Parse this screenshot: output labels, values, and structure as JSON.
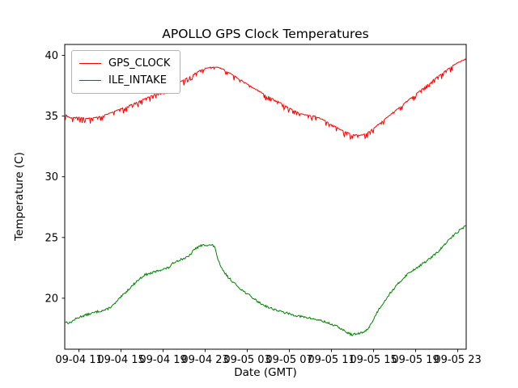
{
  "chart_data": {
    "type": "line",
    "title": "APOLLO GPS Clock Temperatures",
    "xlabel": "Date (GMT)",
    "ylabel": "Temperature (C)",
    "x_unit": "hours since 09-04 00:00 GMT",
    "xlim": [
      9.65,
      47.8
    ],
    "ylim": [
      15.8,
      40.9
    ],
    "xticks": [
      11,
      15,
      19,
      23,
      27,
      31,
      35,
      39,
      43,
      47
    ],
    "xticklabels": [
      "09-04 11",
      "09-04 15",
      "09-04 19",
      "09-04 23",
      "09-05 03",
      "09-05 07",
      "09-05 11",
      "09-05 15",
      "09-05 19",
      "09-05 23"
    ],
    "yticks": [
      20,
      25,
      30,
      35,
      40
    ],
    "grid": false,
    "legend_position": "upper left",
    "series": [
      {
        "name": "GPS_CLOCK",
        "color": "#ff0000",
        "noise": {
          "type": "spikes-down",
          "probability": 0.3,
          "amplitude": 0.45,
          "jitter": 0.07,
          "seed": 7
        },
        "points": [
          [
            9.7,
            35.1
          ],
          [
            10.2,
            34.85
          ],
          [
            11.0,
            34.9
          ],
          [
            11.6,
            34.8
          ],
          [
            12.4,
            34.85
          ],
          [
            13.2,
            35.0
          ],
          [
            14.0,
            35.25
          ],
          [
            15.0,
            35.6
          ],
          [
            16.0,
            35.95
          ],
          [
            17.0,
            36.35
          ],
          [
            18.0,
            36.7
          ],
          [
            19.0,
            37.1
          ],
          [
            20.0,
            37.5
          ],
          [
            21.0,
            38.0
          ],
          [
            22.0,
            38.5
          ],
          [
            22.7,
            38.85
          ],
          [
            23.3,
            39.0
          ],
          [
            24.0,
            39.05
          ],
          [
            24.6,
            38.9
          ],
          [
            25.5,
            38.45
          ],
          [
            26.5,
            37.9
          ],
          [
            27.5,
            37.35
          ],
          [
            28.5,
            36.85
          ],
          [
            29.5,
            36.4
          ],
          [
            30.5,
            35.9
          ],
          [
            31.2,
            35.55
          ],
          [
            32.0,
            35.2
          ],
          [
            32.8,
            35.05
          ],
          [
            33.4,
            35.0
          ],
          [
            34.1,
            34.75
          ],
          [
            34.9,
            34.35
          ],
          [
            35.6,
            34.0
          ],
          [
            36.3,
            33.7
          ],
          [
            37.0,
            33.5
          ],
          [
            37.7,
            33.4
          ],
          [
            38.3,
            33.55
          ],
          [
            39.0,
            34.0
          ],
          [
            40.0,
            34.7
          ],
          [
            41.0,
            35.4
          ],
          [
            42.0,
            36.1
          ],
          [
            43.0,
            36.8
          ],
          [
            44.0,
            37.5
          ],
          [
            45.0,
            38.2
          ],
          [
            46.0,
            38.85
          ],
          [
            46.8,
            39.3
          ],
          [
            47.4,
            39.55
          ],
          [
            47.8,
            39.7
          ]
        ]
      },
      {
        "name": "ILE_INTAKE",
        "color": "#008000",
        "noise": {
          "type": "jitter",
          "amplitude": 0.09,
          "seed": 13
        },
        "points": [
          [
            9.7,
            18.05
          ],
          [
            10.1,
            17.95
          ],
          [
            10.6,
            18.25
          ],
          [
            11.2,
            18.5
          ],
          [
            12.0,
            18.7
          ],
          [
            12.8,
            18.9
          ],
          [
            13.6,
            19.05
          ],
          [
            14.3,
            19.45
          ],
          [
            15.0,
            20.1
          ],
          [
            15.8,
            20.8
          ],
          [
            16.5,
            21.4
          ],
          [
            17.2,
            21.9
          ],
          [
            18.0,
            22.1
          ],
          [
            18.8,
            22.35
          ],
          [
            19.5,
            22.5
          ],
          [
            20.1,
            23.0
          ],
          [
            20.7,
            23.2
          ],
          [
            21.4,
            23.4
          ],
          [
            22.0,
            24.05
          ],
          [
            22.5,
            24.3
          ],
          [
            23.1,
            24.4
          ],
          [
            23.7,
            24.35
          ],
          [
            23.95,
            24.15
          ],
          [
            24.2,
            23.2
          ],
          [
            24.5,
            22.5
          ],
          [
            25.1,
            21.8
          ],
          [
            25.8,
            21.2
          ],
          [
            26.6,
            20.6
          ],
          [
            27.4,
            20.1
          ],
          [
            28.2,
            19.6
          ],
          [
            29.0,
            19.25
          ],
          [
            30.0,
            18.95
          ],
          [
            31.0,
            18.7
          ],
          [
            32.0,
            18.5
          ],
          [
            33.0,
            18.35
          ],
          [
            34.0,
            18.15
          ],
          [
            35.0,
            17.85
          ],
          [
            35.7,
            17.6
          ],
          [
            36.3,
            17.25
          ],
          [
            36.9,
            17.0
          ],
          [
            37.4,
            17.05
          ],
          [
            37.9,
            17.15
          ],
          [
            38.4,
            17.4
          ],
          [
            38.9,
            18.1
          ],
          [
            39.4,
            18.95
          ],
          [
            39.9,
            19.6
          ],
          [
            40.6,
            20.45
          ],
          [
            41.4,
            21.25
          ],
          [
            42.1,
            21.9
          ],
          [
            42.9,
            22.4
          ],
          [
            43.6,
            22.8
          ],
          [
            44.4,
            23.3
          ],
          [
            45.1,
            23.8
          ],
          [
            45.9,
            24.55
          ],
          [
            46.5,
            25.1
          ],
          [
            47.1,
            25.55
          ],
          [
            47.5,
            25.8
          ],
          [
            47.8,
            26.0
          ]
        ]
      }
    ]
  }
}
